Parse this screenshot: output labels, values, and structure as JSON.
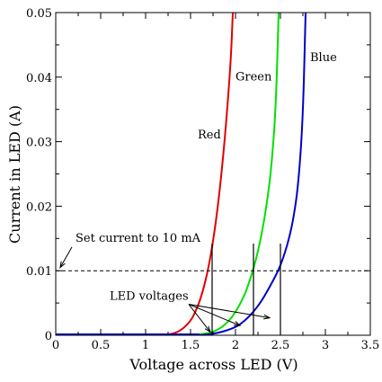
{
  "chart_data": {
    "type": "line",
    "title": "",
    "xlabel": "Voltage across LED (V)",
    "ylabel": "Current in LED (A)",
    "xlim": [
      0,
      3.5
    ],
    "ylim": [
      0,
      0.05
    ],
    "x_ticks": [
      0,
      0.5,
      1,
      1.5,
      2,
      2.5,
      3,
      3.5
    ],
    "x_tick_labels": [
      "0",
      "0.5",
      "1",
      "1.5",
      "2",
      "2.5",
      "3",
      "3.5"
    ],
    "y_ticks": [
      0,
      0.01,
      0.02,
      0.03,
      0.04,
      0.05
    ],
    "y_tick_labels": [
      "0",
      "0.01",
      "0.02",
      "0.03",
      "0.04",
      "0.05"
    ],
    "grid": false,
    "legend": "none",
    "series": [
      {
        "name": "Red",
        "color": "#e00000",
        "x": [
          1.2,
          1.3,
          1.4,
          1.5,
          1.55,
          1.6,
          1.65,
          1.7,
          1.75,
          1.8,
          1.85,
          1.9,
          1.95,
          1.97
        ],
        "y": [
          0.0,
          0.0002,
          0.0008,
          0.0022,
          0.0035,
          0.0052,
          0.0075,
          0.0105,
          0.0145,
          0.0195,
          0.0258,
          0.0335,
          0.043,
          0.05
        ]
      },
      {
        "name": "Green",
        "color": "#00e000",
        "x": [
          1.5,
          1.7,
          1.8,
          1.9,
          2.0,
          2.1,
          2.15,
          2.2,
          2.25,
          2.3,
          2.35,
          2.4,
          2.45,
          2.48
        ],
        "y": [
          0.0,
          0.0003,
          0.0008,
          0.0018,
          0.0035,
          0.0062,
          0.0081,
          0.0103,
          0.013,
          0.0163,
          0.0205,
          0.026,
          0.0355,
          0.05
        ]
      },
      {
        "name": "Blue",
        "color": "#0000c8",
        "x": [
          1.6,
          1.8,
          2.0,
          2.1,
          2.2,
          2.3,
          2.4,
          2.45,
          2.5,
          2.55,
          2.6,
          2.65,
          2.7,
          2.75,
          2.78
        ],
        "y": [
          0.0,
          0.0003,
          0.0012,
          0.0022,
          0.0036,
          0.0055,
          0.008,
          0.0093,
          0.0108,
          0.0128,
          0.0152,
          0.0185,
          0.0235,
          0.0335,
          0.05
        ]
      }
    ],
    "reference_line": {
      "y": 0.01,
      "style": "dashed",
      "color": "#000000"
    },
    "annotations": [
      {
        "text": "Set current to 10 mA",
        "x": 0.22,
        "y": 0.0145,
        "arrow_to": [
          0.05,
          0.0105
        ]
      },
      {
        "text": "LED voltages",
        "x": 0.6,
        "y": 0.0055,
        "arrow_to": [
          [
            1.72,
            0.0005
          ],
          [
            2.05,
            0.0015
          ],
          [
            2.38,
            0.0027
          ]
        ]
      }
    ],
    "series_labels": [
      {
        "text": "Red",
        "x": 1.58,
        "y": 0.0305
      },
      {
        "text": "Green",
        "x": 2.0,
        "y": 0.0395
      },
      {
        "text": "Blue",
        "x": 2.83,
        "y": 0.0425
      }
    ],
    "voltage_markers": [
      {
        "x": 1.74,
        "y_top": 0.0142
      },
      {
        "x": 2.2,
        "y_top": 0.0142
      },
      {
        "x": 2.5,
        "y_top": 0.0142
      }
    ]
  }
}
